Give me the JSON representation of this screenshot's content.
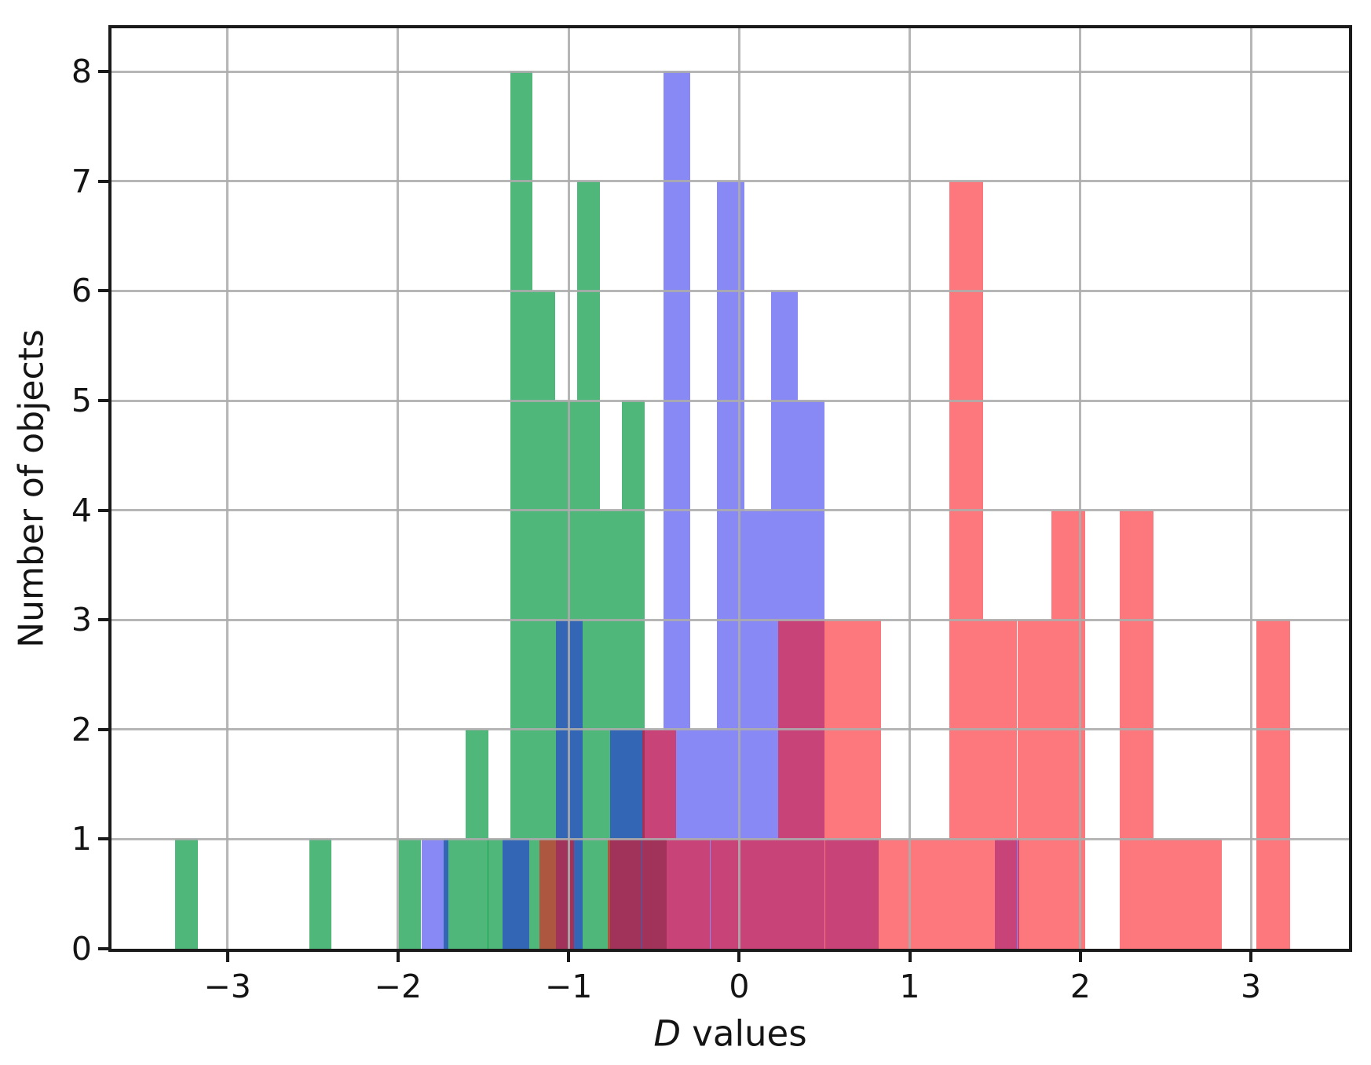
{
  "figure": {
    "ylabel": "Number of objects",
    "xlabel_math": "D",
    "xlabel_rest": " values"
  },
  "chart_data": {
    "type": "bar",
    "subtype": "overlapping-histograms",
    "title": "",
    "xlabel": "D values",
    "ylabel": "Number of objects",
    "xlim": [
      -3.68,
      3.575
    ],
    "ylim": [
      0,
      8.395
    ],
    "grid": true,
    "grid_on_top": true,
    "legend": "none",
    "axes_color": "#1a1a1a",
    "grid_color": "#acacac",
    "xticks": [
      {
        "v": -3,
        "label": "−3"
      },
      {
        "v": -2,
        "label": "−2"
      },
      {
        "v": -1,
        "label": "−1"
      },
      {
        "v": 0,
        "label": "0"
      },
      {
        "v": 1,
        "label": "1"
      },
      {
        "v": 2,
        "label": "2"
      },
      {
        "v": 3,
        "label": "3"
      }
    ],
    "yticks": [
      {
        "v": 0,
        "label": "0"
      },
      {
        "v": 1,
        "label": "1"
      },
      {
        "v": 2,
        "label": "2"
      },
      {
        "v": 3,
        "label": "3"
      },
      {
        "v": 4,
        "label": "4"
      },
      {
        "v": 5,
        "label": "5"
      },
      {
        "v": 6,
        "label": "6"
      },
      {
        "v": 7,
        "label": "7"
      },
      {
        "v": 8,
        "label": "8"
      }
    ],
    "series": [
      {
        "name": "green-histogram",
        "bin_width": 0.131,
        "color": "rgba(0,150,62,0.69)",
        "rendered_color_hex": "#52B785",
        "bars": [
          [
            -3.307,
            -3.176,
            1
          ],
          [
            -2.521,
            -2.39,
            1
          ],
          [
            -1.997,
            -1.866,
            1
          ],
          [
            -1.735,
            -1.604,
            1
          ],
          [
            -1.604,
            -1.473,
            2
          ],
          [
            -1.473,
            -1.342,
            1
          ],
          [
            -1.342,
            -1.211,
            8
          ],
          [
            -1.211,
            -1.08,
            6
          ],
          [
            -1.08,
            -0.949,
            5
          ],
          [
            -0.949,
            -0.818,
            7
          ],
          [
            -0.818,
            -0.687,
            4
          ],
          [
            -0.687,
            -0.556,
            5
          ],
          [
            -0.556,
            -0.425,
            1
          ]
        ]
      },
      {
        "name": "blue-histogram",
        "bin_width": 0.158,
        "color": "rgba(28,28,238,0.52)",
        "rendered_color_hex": "#8B8BF3",
        "bars": [
          [
            -1.863,
            -1.705,
            1
          ],
          [
            -1.39,
            -1.232,
            1
          ],
          [
            -1.075,
            -0.917,
            3
          ],
          [
            -0.759,
            -0.602,
            2
          ],
          [
            -0.602,
            -0.444,
            2
          ],
          [
            -0.444,
            -0.286,
            8
          ],
          [
            -0.286,
            -0.129,
            2
          ],
          [
            -0.129,
            0.029,
            7
          ],
          [
            0.029,
            0.187,
            4
          ],
          [
            0.187,
            0.344,
            6
          ],
          [
            0.344,
            0.502,
            5
          ],
          [
            0.502,
            0.66,
            1
          ],
          [
            0.66,
            0.817,
            1
          ],
          [
            1.5,
            1.643,
            1
          ]
        ]
      },
      {
        "name": "red-histogram",
        "bin_width": 0.2,
        "color": "rgba(252,10,16,0.55)",
        "rendered_color_hex": "#FB8682",
        "bars": [
          [
            -1.17,
            -0.97,
            1
          ],
          [
            -0.77,
            -0.57,
            1
          ],
          [
            -0.57,
            -0.37,
            2
          ],
          [
            -0.37,
            -0.17,
            1
          ],
          [
            -0.17,
            0.03,
            1
          ],
          [
            0.03,
            0.23,
            1
          ],
          [
            0.23,
            0.43,
            3
          ],
          [
            0.43,
            0.63,
            3
          ],
          [
            0.63,
            0.83,
            3
          ],
          [
            0.83,
            1.03,
            1
          ],
          [
            1.03,
            1.23,
            1
          ],
          [
            1.23,
            1.43,
            7
          ],
          [
            1.43,
            1.63,
            3
          ],
          [
            1.63,
            1.83,
            3
          ],
          [
            1.83,
            2.03,
            4
          ],
          [
            2.23,
            2.43,
            4
          ],
          [
            2.43,
            2.63,
            1
          ],
          [
            2.63,
            2.83,
            1
          ],
          [
            3.03,
            3.23,
            3
          ]
        ]
      }
    ],
    "overlap_blend_colors": {
      "green_plus_blue": "#2E5CC0",
      "blue_plus_red": "#C84573",
      "green_plus_red": "#D85C33",
      "green_plus_blue_plus_red": "#B02A5E"
    }
  }
}
